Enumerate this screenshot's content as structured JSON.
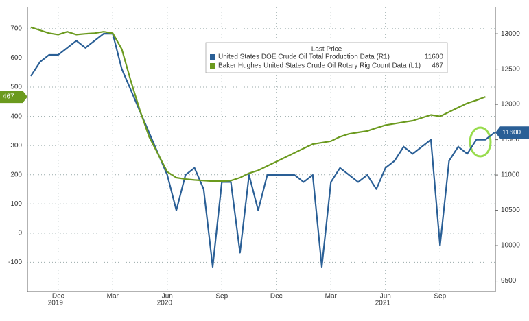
{
  "chart_data": {
    "type": "line",
    "legend_title": "Last Price",
    "categories": [
      null,
      null,
      null,
      "Dec",
      null,
      null,
      null,
      null,
      null,
      "Mar",
      null,
      null,
      null,
      null,
      null,
      "Jun",
      null,
      null,
      null,
      null,
      null,
      "Sep",
      null,
      null,
      null,
      null,
      null,
      "Dec",
      null,
      null,
      null,
      null,
      null,
      "Mar",
      null,
      null,
      null,
      null,
      null,
      "Jun",
      null,
      null,
      null,
      null,
      null,
      "Sep",
      null,
      null,
      null,
      null,
      null,
      null
    ],
    "year_labels": [
      null,
      null,
      null,
      "2019",
      null,
      null,
      null,
      null,
      null,
      null,
      null,
      null,
      null,
      null,
      null,
      "2020",
      null,
      null,
      null,
      null,
      null,
      null,
      null,
      null,
      null,
      null,
      null,
      null,
      null,
      null,
      null,
      null,
      null,
      null,
      null,
      null,
      null,
      null,
      null,
      "2021",
      null,
      null,
      null,
      null,
      null,
      null,
      null,
      null,
      null,
      null,
      null,
      null
    ],
    "series": [
      {
        "name": "United States DOE Crude Oil Total Production Data  (R1)",
        "color": "#2a5f96",
        "axis": "y2",
        "values": [
          12400,
          12600,
          12700,
          12700,
          12800,
          12900,
          12800,
          12900,
          13000,
          13000,
          12500,
          12200,
          11900,
          11600,
          11300,
          11000,
          10500,
          11000,
          11100,
          10800,
          9700,
          10900,
          10900,
          9900,
          11000,
          10500,
          11000,
          11000,
          11000,
          11000,
          10900,
          11000,
          9700,
          10900,
          11100,
          11000,
          10900,
          11000,
          10800,
          11100,
          11200,
          11400,
          11300,
          11400,
          11500,
          10000,
          11200,
          11400,
          11300,
          11500,
          11500,
          11600
        ]
      },
      {
        "name": "Baker Hughes United States Crude Oil Rotary Rig Count Data  (L1)",
        "color": "#6b9a1e",
        "values": [
          705,
          695,
          685,
          680,
          690,
          680,
          683,
          685,
          690,
          685,
          630,
          520,
          420,
          330,
          270,
          210,
          190,
          185,
          182,
          180,
          178,
          178,
          180,
          190,
          205,
          215,
          230,
          245,
          260,
          275,
          290,
          305,
          310,
          315,
          330,
          340,
          345,
          350,
          360,
          370,
          375,
          380,
          385,
          395,
          405,
          400,
          415,
          430,
          445,
          455,
          467,
          null
        ]
      }
    ],
    "ylim": [
      -200,
      775
    ],
    "yticks": [
      -100,
      0,
      100,
      200,
      300,
      400,
      500,
      600,
      700
    ],
    "y2lim": [
      9350,
      13380
    ],
    "y2ticks": [
      9500,
      10000,
      10500,
      11000,
      11500,
      12000,
      12500,
      13000
    ],
    "grid": true
  }
}
